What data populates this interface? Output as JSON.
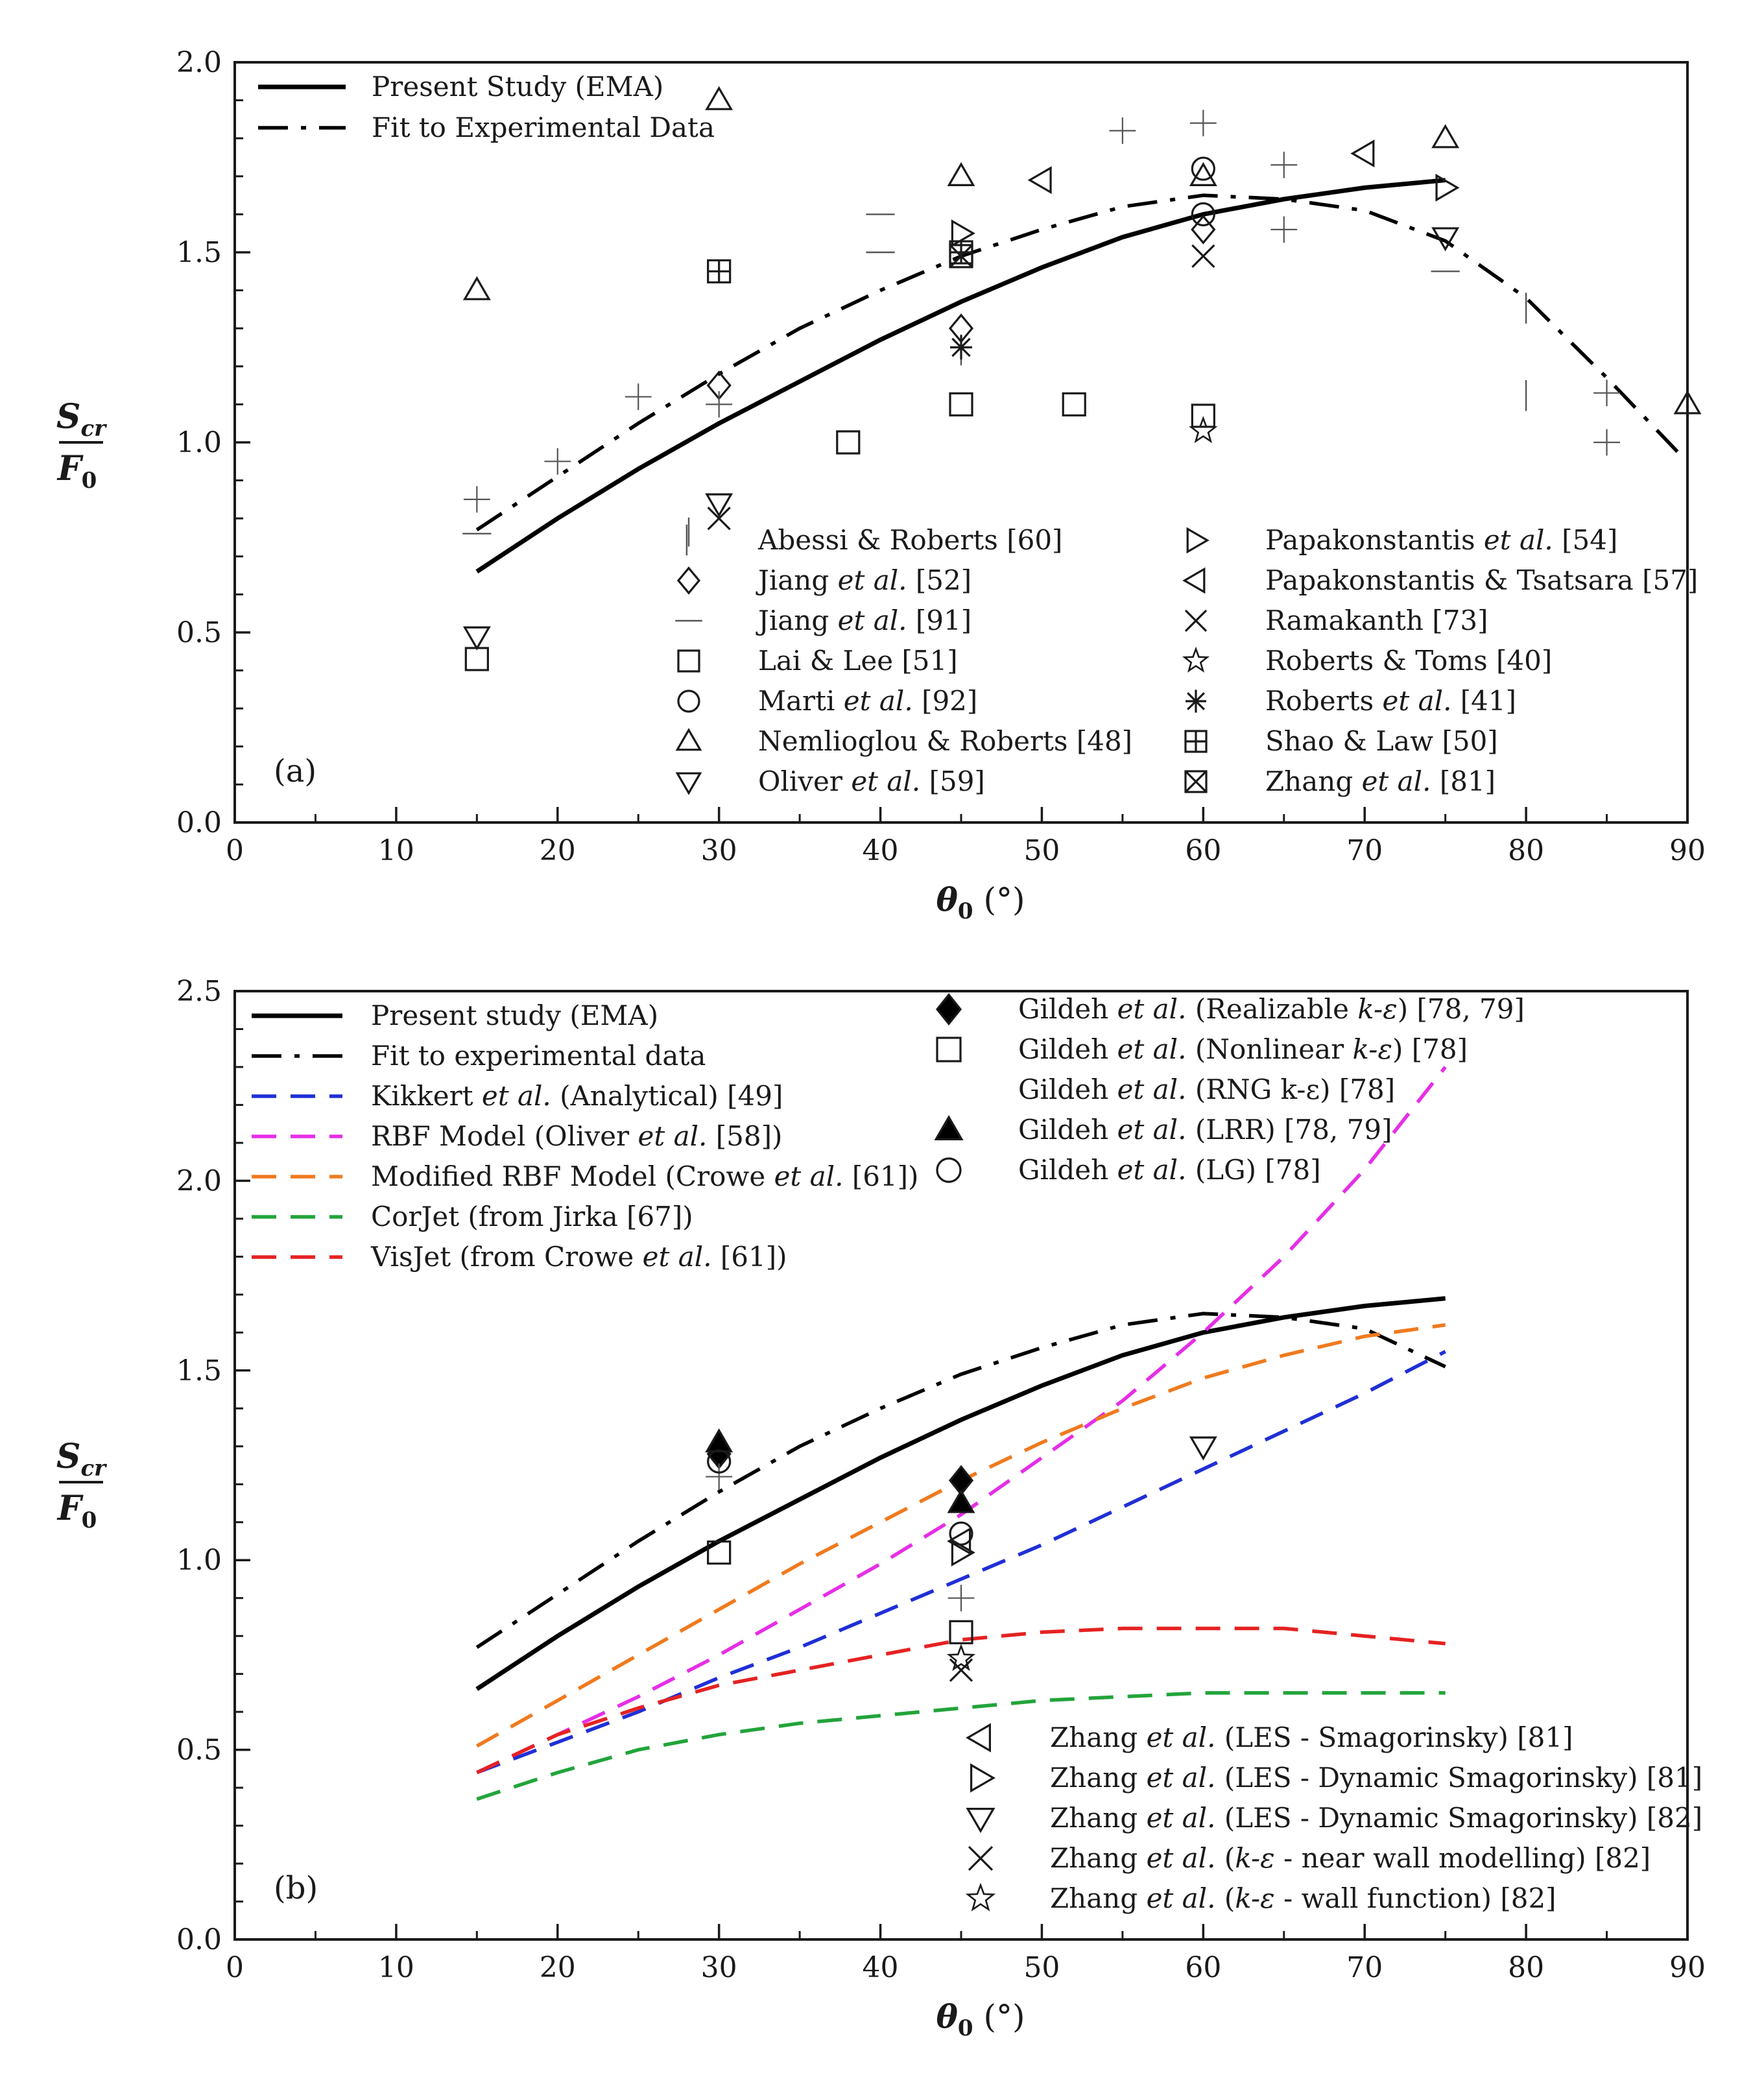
{
  "chart_data": [
    {
      "panel": "(a)",
      "type": "scatter",
      "xlabel_symbol": "θ",
      "xlabel_sub": "0",
      "xlabel_unit": "(°)",
      "ylabel_num": "S",
      "ylabel_num_sub": "cr",
      "ylabel_den": "F",
      "ylabel_den_sub": "0",
      "xlim": [
        0,
        90
      ],
      "ylim": [
        0,
        2
      ],
      "xticks": [
        0,
        10,
        20,
        30,
        40,
        50,
        60,
        70,
        80,
        90
      ],
      "yticks": [
        0,
        0.5,
        1,
        1.5,
        2
      ],
      "ytick_labels": [
        "0.0",
        "0.5",
        "1.0",
        "1.5",
        "2.0"
      ],
      "line_legend": [
        "Present Study (EMA)",
        "Fit to Experimental Data"
      ],
      "lines": [
        {
          "name": "Present Study (EMA)",
          "style": "solid",
          "color": "#000000",
          "x": [
            15,
            20,
            25,
            30,
            35,
            40,
            45,
            50,
            55,
            60,
            65,
            70,
            75
          ],
          "y": [
            0.66,
            0.8,
            0.93,
            1.05,
            1.16,
            1.27,
            1.37,
            1.46,
            1.54,
            1.6,
            1.64,
            1.67,
            1.69
          ]
        },
        {
          "name": "Fit to Experimental Data",
          "style": "dashdot",
          "color": "#000000",
          "x": [
            15,
            20,
            25,
            30,
            35,
            40,
            45,
            50,
            55,
            60,
            65,
            70,
            75,
            80,
            85,
            89.5
          ],
          "y": [
            0.77,
            0.91,
            1.05,
            1.18,
            1.3,
            1.4,
            1.49,
            1.56,
            1.62,
            1.65,
            1.64,
            1.61,
            1.53,
            1.38,
            1.17,
            0.97
          ]
        }
      ],
      "series": [
        {
          "name": "Abessi & Roberts [60]",
          "name_parts": [
            "Abessi & Roberts [60]"
          ],
          "marker": "vbar",
          "x": [
            28,
            45,
            80,
            80
          ],
          "y": [
            0.72,
            1.22,
            1.33,
            1.1
          ]
        },
        {
          "name": "Jiang et al. [52]",
          "name_parts": [
            "Jiang ",
            "et al.",
            " [52]"
          ],
          "marker": "diamond",
          "x": [
            30,
            45,
            60
          ],
          "y": [
            1.15,
            1.3,
            1.56
          ]
        },
        {
          "name": "Jiang et al. [91]",
          "name_parts": [
            "Jiang ",
            "et al.",
            " [91]"
          ],
          "marker": "hbar",
          "x": [
            15,
            40,
            40,
            75
          ],
          "y": [
            0.76,
            1.6,
            1.5,
            1.45
          ]
        },
        {
          "name": "Lai & Lee [51]",
          "name_parts": [
            "Lai & Lee [51]"
          ],
          "marker": "square",
          "x": [
            15,
            38,
            45,
            52,
            60
          ],
          "y": [
            0.43,
            1.0,
            1.1,
            1.1,
            1.07
          ]
        },
        {
          "name": "Marti et al. [92]",
          "name_parts": [
            "Marti ",
            "et al.",
            " [92]"
          ],
          "marker": "circle",
          "x": [
            60,
            60
          ],
          "y": [
            1.72,
            1.6
          ]
        },
        {
          "name": "Nemlioglou & Roberts [48]",
          "name_parts": [
            "Nemlioglou & Roberts [48]"
          ],
          "marker": "triangle-up",
          "x": [
            15,
            30,
            45,
            60,
            75,
            90
          ],
          "y": [
            1.4,
            1.9,
            1.7,
            1.7,
            1.8,
            1.1
          ]
        },
        {
          "name": "Oliver et al. [59]",
          "name_parts": [
            "Oliver ",
            "et al.",
            " [59]"
          ],
          "marker": "triangle-down",
          "x": [
            15,
            30,
            75
          ],
          "y": [
            0.49,
            0.84,
            1.54
          ]
        },
        {
          "name": "Papakonstantis et al. [54]",
          "name_parts": [
            "Papakonstantis ",
            "et al.",
            " [54]"
          ],
          "marker": "triangle-right",
          "x": [
            45,
            75
          ],
          "y": [
            1.55,
            1.67
          ]
        },
        {
          "name": "Papakonstantis & Tsatsara [57]",
          "name_parts": [
            "Papakonstantis & Tsatsara [57]"
          ],
          "marker": "triangle-left",
          "x": [
            50,
            70
          ],
          "y": [
            1.69,
            1.76
          ]
        },
        {
          "name": "Ramakanth [73]",
          "name_parts": [
            "Ramakanth [73]"
          ],
          "marker": "cross",
          "x": [
            30,
            60
          ],
          "y": [
            0.8,
            1.49
          ]
        },
        {
          "name": "Roberts & Toms [40]",
          "name_parts": [
            "Roberts & Toms [40]"
          ],
          "marker": "star",
          "x": [
            60
          ],
          "y": [
            1.03
          ]
        },
        {
          "name": "Roberts et al. [41]",
          "name_parts": [
            "Roberts ",
            "et al.",
            " [41]"
          ],
          "marker": "asterisk",
          "x": [
            45
          ],
          "y": [
            1.25
          ]
        },
        {
          "name": "Shao & Law [50]",
          "name_parts": [
            "Shao & Law [50]"
          ],
          "marker": "boxplus",
          "x": [
            30,
            45
          ],
          "y": [
            1.45,
            1.5
          ]
        },
        {
          "name": "Zhang et al. [81]",
          "name_parts": [
            "Zhang ",
            "et al.",
            " [81]"
          ],
          "marker": "boxtimes",
          "x": [
            45
          ],
          "y": [
            1.49
          ]
        },
        {
          "name": "plus",
          "marker": "plus",
          "legend": false,
          "x": [
            15,
            20,
            25,
            30,
            55,
            60,
            65,
            65,
            85,
            85
          ],
          "y": [
            0.85,
            0.95,
            1.12,
            1.1,
            1.82,
            1.84,
            1.73,
            1.56,
            1.13,
            1.0
          ]
        }
      ],
      "annotation": "(a)"
    },
    {
      "panel": "(b)",
      "type": "line",
      "xlabel_symbol": "θ",
      "xlabel_sub": "0",
      "xlabel_unit": "(°)",
      "ylabel_num": "S",
      "ylabel_num_sub": "cr",
      "ylabel_den": "F",
      "ylabel_den_sub": "0",
      "xlim": [
        0,
        90
      ],
      "ylim": [
        0,
        2.5
      ],
      "xticks": [
        0,
        10,
        20,
        30,
        40,
        50,
        60,
        70,
        80,
        90
      ],
      "yticks": [
        0,
        0.5,
        1,
        1.5,
        2,
        2.5
      ],
      "ytick_labels": [
        "0.0",
        "0.5",
        "1.0",
        "1.5",
        "2.0",
        "2.5"
      ],
      "lines": [
        {
          "name": "Present study (EMA)",
          "name_parts": [
            "Present study (EMA)"
          ],
          "style": "solid",
          "color": "#000000",
          "x": [
            15,
            20,
            25,
            30,
            35,
            40,
            45,
            50,
            55,
            60,
            65,
            70,
            75
          ],
          "y": [
            0.66,
            0.8,
            0.93,
            1.05,
            1.16,
            1.27,
            1.37,
            1.46,
            1.54,
            1.6,
            1.64,
            1.67,
            1.69
          ]
        },
        {
          "name": "Fit to experimental data",
          "name_parts": [
            "Fit to experimental data"
          ],
          "style": "dashdot",
          "color": "#000000",
          "x": [
            15,
            20,
            25,
            30,
            35,
            40,
            45,
            50,
            55,
            60,
            65,
            70,
            75
          ],
          "y": [
            0.77,
            0.91,
            1.05,
            1.18,
            1.3,
            1.4,
            1.49,
            1.56,
            1.62,
            1.65,
            1.64,
            1.61,
            1.51
          ]
        },
        {
          "name": "Kikkert et al. (Analytical) [49]",
          "name_parts": [
            "Kikkert ",
            "et al.",
            " (Analytical) [49]"
          ],
          "style": "dashed",
          "color": "#1f2fd6",
          "x": [
            15,
            20,
            25,
            30,
            35,
            40,
            45,
            50,
            55,
            60,
            65,
            70,
            75
          ],
          "y": [
            0.44,
            0.52,
            0.6,
            0.69,
            0.77,
            0.86,
            0.95,
            1.04,
            1.14,
            1.24,
            1.34,
            1.44,
            1.55
          ]
        },
        {
          "name": "RBF Model (Oliver et al. [58])",
          "name_parts": [
            "RBF Model (Oliver ",
            "et al.",
            " [58])"
          ],
          "style": "dashed",
          "color": "#e62ee6",
          "x": [
            15,
            20,
            25,
            30,
            35,
            40,
            45,
            50,
            55,
            60,
            65,
            70,
            75
          ],
          "y": [
            0.44,
            0.54,
            0.64,
            0.75,
            0.87,
            0.99,
            1.12,
            1.27,
            1.42,
            1.6,
            1.8,
            2.03,
            2.3
          ]
        },
        {
          "name": "Modified RBF Model (Crowe et al. [61])",
          "name_parts": [
            "Modified RBF Model (Crowe ",
            "et al.",
            " [61])"
          ],
          "style": "dashed",
          "color": "#f07a1e",
          "x": [
            15,
            20,
            25,
            30,
            35,
            40,
            45,
            50,
            55,
            60,
            65,
            70,
            75
          ],
          "y": [
            0.51,
            0.63,
            0.75,
            0.87,
            0.99,
            1.1,
            1.21,
            1.31,
            1.4,
            1.48,
            1.54,
            1.59,
            1.62
          ]
        },
        {
          "name": "CorJet (from Jirka [67])",
          "name_parts": [
            "CorJet (from Jirka [67])"
          ],
          "style": "dashed",
          "color": "#22a43a",
          "x": [
            15,
            20,
            25,
            30,
            35,
            40,
            45,
            50,
            55,
            60,
            65,
            70,
            75
          ],
          "y": [
            0.37,
            0.44,
            0.5,
            0.54,
            0.57,
            0.59,
            0.61,
            0.63,
            0.64,
            0.65,
            0.65,
            0.65,
            0.65
          ]
        },
        {
          "name": "VisJet (from Crowe et al. [61])",
          "name_parts": [
            "VisJet (from Crowe ",
            "et al.",
            " [61])"
          ],
          "style": "dashed",
          "color": "#e52222",
          "x": [
            15,
            20,
            25,
            30,
            35,
            40,
            45,
            50,
            55,
            60,
            65,
            70,
            75
          ],
          "y": [
            0.44,
            0.54,
            0.61,
            0.67,
            0.71,
            0.75,
            0.79,
            0.81,
            0.82,
            0.82,
            0.82,
            0.8,
            0.78
          ]
        }
      ],
      "series": [
        {
          "name": "Gildeh et al. (Realizable k-ε) [78, 79]",
          "name_parts": [
            "Gildeh ",
            "et al.",
            " (Realizable ",
            "k-ε",
            ") [78, 79]"
          ],
          "marker": "diamond-filled",
          "x": [
            30,
            45
          ],
          "y": [
            1.28,
            1.21
          ]
        },
        {
          "name": "Gildeh et al. (Nonlinear k-ε) [78]",
          "name_parts": [
            "Gildeh ",
            "et al.",
            " (Nonlinear ",
            "k-ε",
            ") [78]"
          ],
          "marker": "square",
          "x": [
            30,
            45
          ],
          "y": [
            1.02,
            0.81
          ]
        },
        {
          "name": "Gildeh et al. (RNG k-ε) [78]",
          "name_parts": [
            "Gildeh ",
            "et al.",
            " (RNG k-ε) [78]"
          ],
          "marker": "plus",
          "x": [
            30,
            45
          ],
          "y": [
            1.22,
            0.9
          ]
        },
        {
          "name": "Gildeh et al. (LRR) [78, 79]",
          "name_parts": [
            "Gildeh ",
            "et al.",
            " (LRR) [78, 79]"
          ],
          "marker": "triangle-filled",
          "x": [
            30,
            45
          ],
          "y": [
            1.31,
            1.15
          ]
        },
        {
          "name": "Gildeh et al. (LG) [78]",
          "name_parts": [
            "Gildeh ",
            "et al.",
            " (LG) [78]"
          ],
          "marker": "circle",
          "x": [
            30,
            45
          ],
          "y": [
            1.26,
            1.07
          ]
        },
        {
          "name": "Zhang et al. (LES - Smagorinsky) [81]",
          "name_parts": [
            "Zhang ",
            "et al.",
            " (LES - Smagorinsky) [81]"
          ],
          "marker": "triangle-left",
          "x": [
            45
          ],
          "y": [
            1.05
          ]
        },
        {
          "name": "Zhang et al. (LES - Dynamic Smagorinsky) [81]",
          "name_parts": [
            "Zhang ",
            "et al.",
            " (LES - Dynamic Smagorinsky) [81]"
          ],
          "marker": "triangle-right",
          "x": [
            45
          ],
          "y": [
            1.02
          ]
        },
        {
          "name": "Zhang et al. (LES - Dynamic Smagorinsky) [82]",
          "name_parts": [
            "Zhang ",
            "et al.",
            " (LES - Dynamic Smagorinsky) [82]"
          ],
          "marker": "triangle-down",
          "x": [
            60
          ],
          "y": [
            1.3
          ]
        },
        {
          "name": "Zhang et al. (k-ε - near wall modelling) [82]",
          "name_parts": [
            "Zhang ",
            "et al.",
            " (",
            "k-ε",
            " - near wall modelling) [82]"
          ],
          "marker": "cross",
          "x": [
            45
          ],
          "y": [
            0.71
          ]
        },
        {
          "name": "Zhang et al. (k-ε - wall function) [82]",
          "name_parts": [
            "Zhang ",
            "et al.",
            " (",
            "k-ε",
            " - wall function) [82]"
          ],
          "marker": "star",
          "x": [
            45
          ],
          "y": [
            0.74
          ]
        }
      ],
      "annotation": "(b)"
    }
  ]
}
